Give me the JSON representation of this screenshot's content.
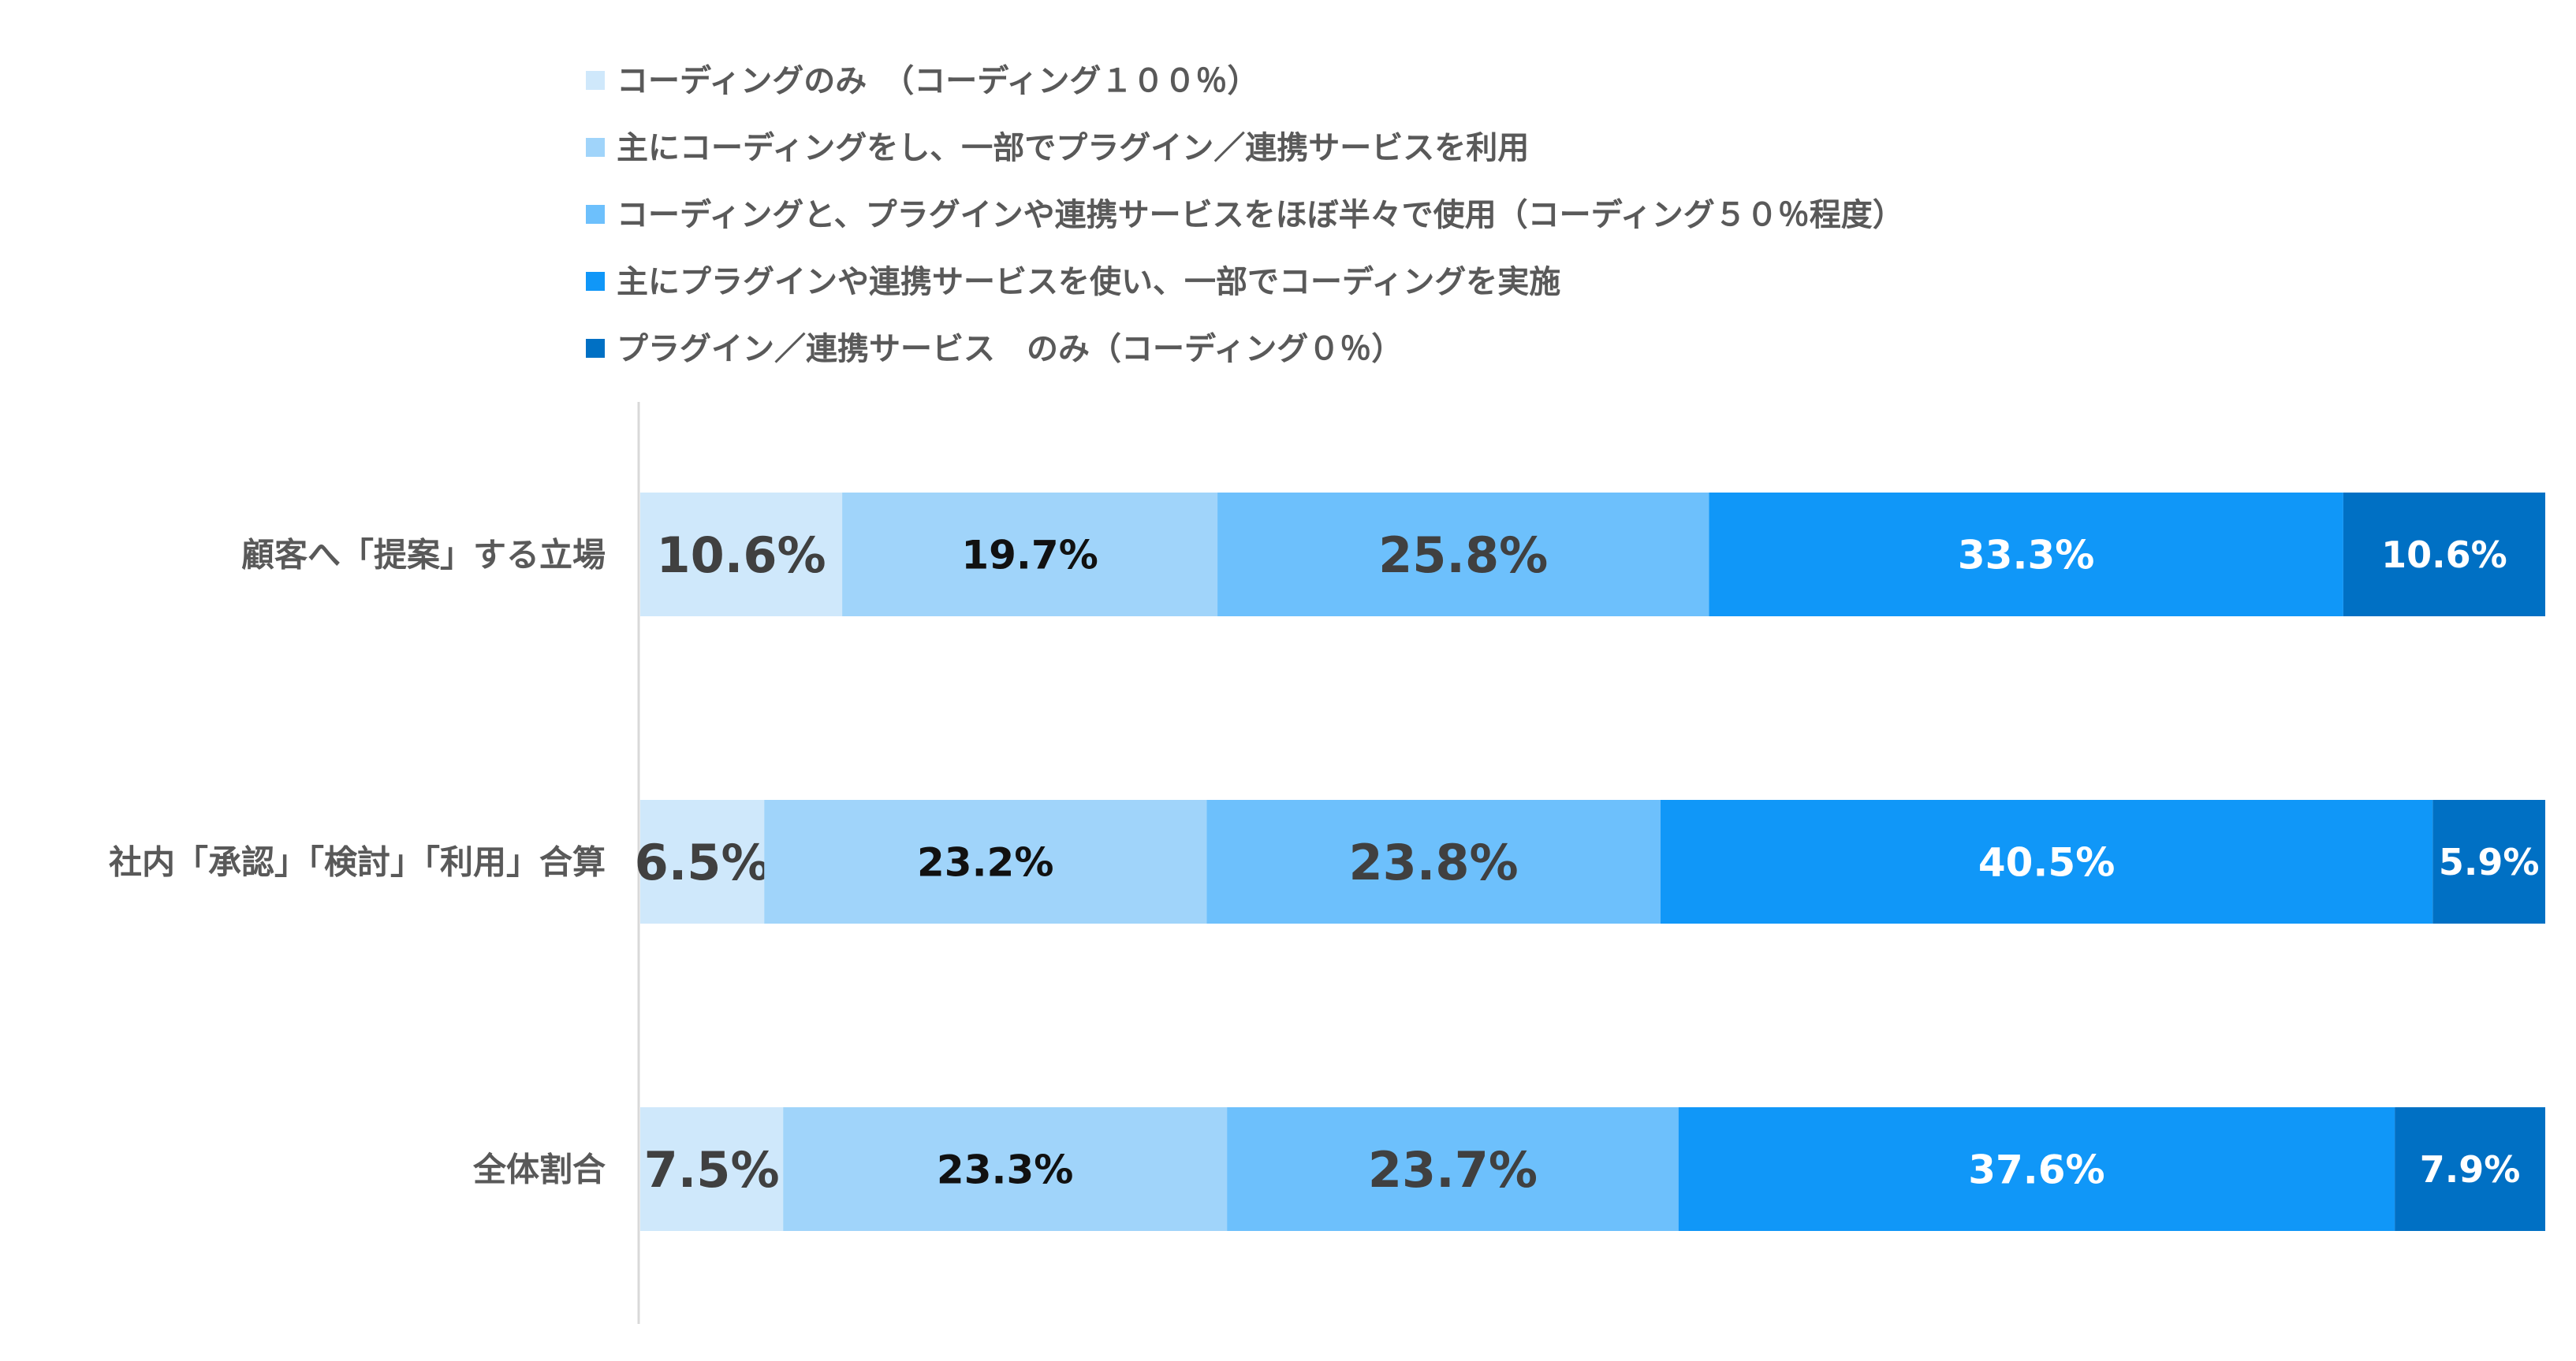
{
  "chart_data": {
    "type": "bar",
    "orientation": "horizontal",
    "stacked": "100%",
    "title": "",
    "xlabel": "",
    "ylabel": "",
    "xlim": [
      0,
      100
    ],
    "grid": false,
    "legend_position": "top",
    "categories": [
      "顧客へ「提案」する立場",
      "社内「承認」「検討」「利用」合算",
      "全体割合"
    ],
    "series": [
      {
        "name": "コーディングのみ　（コーディング１００％）",
        "color": "#cfe8fb",
        "label_color": "#404040",
        "values": [
          10.6,
          6.5,
          7.5
        ],
        "labels": [
          "10.6%",
          "6.5%",
          "7.5%"
        ]
      },
      {
        "name": "主にコーディングをし、一部でプラグイン／連携サービスを利用",
        "color": "#a0d4fa",
        "label_color": "#111111",
        "values": [
          19.7,
          23.2,
          23.3
        ],
        "labels": [
          "19.7%",
          "23.2%",
          "23.3%"
        ]
      },
      {
        "name": "コーディングと、プラグインや連携サービスをほぼ半々で使用（コーディング５０％程度）",
        "color": "#6dc0fc",
        "label_color": "#404040",
        "values": [
          25.8,
          23.8,
          23.7
        ],
        "labels": [
          "25.8%",
          "23.8%",
          "23.7%"
        ]
      },
      {
        "name": "主にプラグインや連携サービスを使い、一部でコーディングを実施",
        "color": "#1097f8",
        "label_color": "#ffffff",
        "values": [
          33.3,
          40.5,
          37.6
        ],
        "labels": [
          "33.3%",
          "40.5%",
          "37.6%"
        ]
      },
      {
        "name": "プラグイン／連携サービス　のみ（コーディング０％）",
        "color": "#0070c4",
        "label_color": "#ffffff",
        "values": [
          10.6,
          5.9,
          7.9
        ],
        "labels": [
          "10.6%",
          "5.9%",
          "7.9%"
        ]
      }
    ]
  }
}
